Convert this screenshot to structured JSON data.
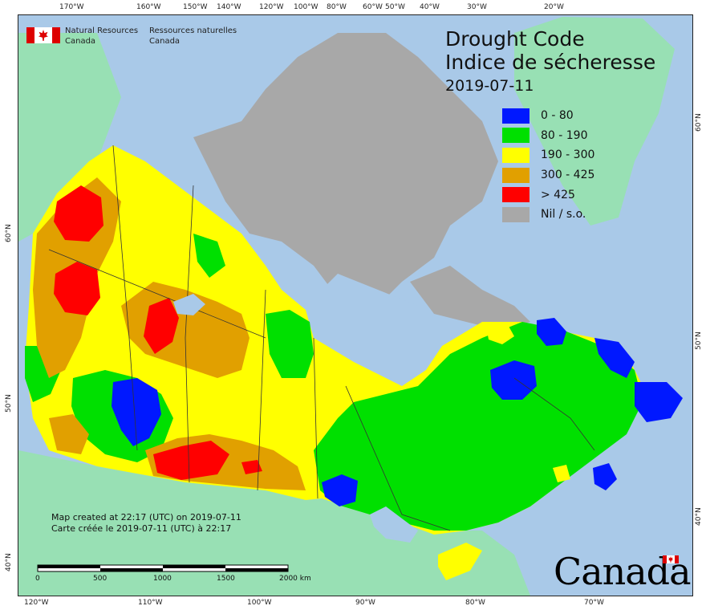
{
  "header": {
    "logo_en_line1": "Natural Resources",
    "logo_en_line2": "Canada",
    "logo_fr_line1": "Ressources naturelles",
    "logo_fr_line2": "Canada"
  },
  "map": {
    "title_en": "Drought Code",
    "title_fr": "Indice de sécheresse",
    "date": "2019-07-11"
  },
  "legend": [
    {
      "label": "0 - 80",
      "color": "#0018ff"
    },
    {
      "label": "80 - 190",
      "color": "#00e000"
    },
    {
      "label": "190 - 300",
      "color": "#ffff00"
    },
    {
      "label": "300 - 425",
      "color": "#e1a000"
    },
    {
      "label": "> 425",
      "color": "#ff0000"
    },
    {
      "label": "Nil / s.o.",
      "color": "#a8a8a8"
    }
  ],
  "top_ticks": [
    "170°W",
    "160°W",
    "150°W",
    "140°W",
    "120°W",
    "100°W",
    "80°W",
    "60°W",
    "50°W",
    "40°W",
    "30°W",
    "20°W"
  ],
  "bottom_ticks": [
    "120°W",
    "110°W",
    "100°W",
    "90°W",
    "80°W",
    "70°W"
  ],
  "left_ticks": [
    "60°N",
    "50°N",
    "40°N"
  ],
  "right_ticks": [
    "60°N",
    "50°N",
    "40°N"
  ],
  "credit": {
    "line1": "Map created at 22:17 (UTC) on 2019-07-11",
    "line2": "Carte créée le 2019-07-11 (UTC) à 22:17"
  },
  "scale_labels": [
    "0",
    "500",
    "1000",
    "1500",
    "2000 km"
  ],
  "wordmark": "Canada",
  "colors": {
    "ocean": "#a9c9e8",
    "land_outside": "#98e0b4",
    "nil": "#a8a8a8"
  }
}
